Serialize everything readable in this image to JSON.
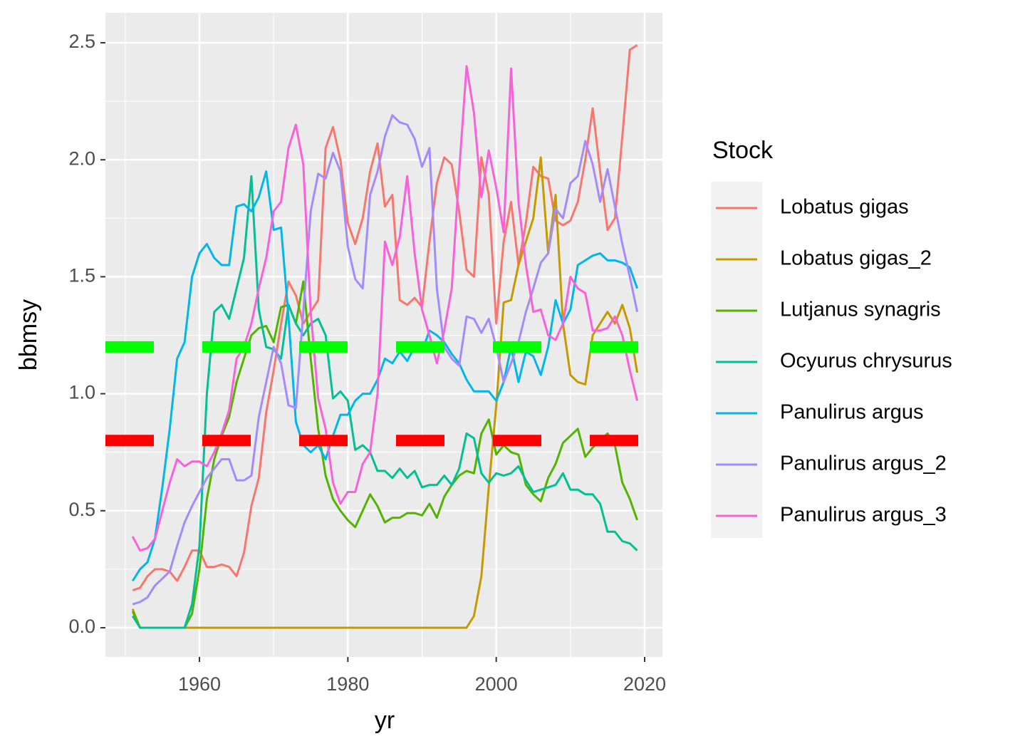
{
  "chart_data": {
    "type": "line",
    "x_label": "yr",
    "y_label": "bbmsy",
    "legend_title": "Stock",
    "legend_position": "right",
    "grid": true,
    "xlim": [
      1947.33,
      2022.4
    ],
    "xticks": [
      1960,
      1980,
      2000,
      2020
    ],
    "ylim": [
      -0.125,
      2.628
    ],
    "yticks": [
      {
        "value": 0,
        "label": "0.0"
      },
      0.5,
      {
        "value": 1,
        "label": "1.0"
      },
      1.5,
      {
        "value": 2,
        "label": "2.0"
      },
      2.5
    ],
    "reference_lines": [
      {
        "value": 1.2,
        "color": "#00ff00"
      },
      {
        "value": 0.8,
        "color": "#ff0000"
      }
    ],
    "x": [
      1951,
      1952,
      1953,
      1954,
      1955,
      1956,
      1957,
      1958,
      1959,
      1960,
      1961,
      1962,
      1963,
      1964,
      1965,
      1966,
      1967,
      1968,
      1969,
      1970,
      1971,
      1972,
      1973,
      1974,
      1975,
      1976,
      1977,
      1978,
      1979,
      1980,
      1981,
      1982,
      1983,
      1984,
      1985,
      1986,
      1987,
      1988,
      1989,
      1990,
      1991,
      1992,
      1993,
      1994,
      1995,
      1996,
      1997,
      1998,
      1999,
      2000,
      2001,
      2002,
      2003,
      2004,
      2005,
      2006,
      2007,
      2008,
      2009,
      2010,
      2011,
      2012,
      2013,
      2014,
      2015,
      2016,
      2017,
      2018,
      2019
    ],
    "series": [
      {
        "name": "Lobatus gigas",
        "color": "#F8766D",
        "values": [
          0.16,
          0.17,
          0.22,
          0.25,
          0.25,
          0.24,
          0.2,
          0.26,
          0.33,
          0.33,
          0.26,
          0.26,
          0.27,
          0.26,
          0.22,
          0.32,
          0.52,
          0.64,
          0.92,
          1.1,
          1.3,
          1.48,
          1.42,
          1.3,
          1.35,
          1.4,
          2.05,
          2.14,
          2.0,
          1.73,
          1.64,
          1.75,
          1.95,
          2.07,
          1.8,
          1.85,
          1.4,
          1.38,
          1.41,
          1.37,
          1.65,
          1.9,
          2.01,
          1.98,
          1.78,
          1.53,
          1.5,
          2.01,
          1.85,
          1.3,
          1.65,
          1.82,
          1.55,
          1.73,
          1.97,
          1.93,
          1.92,
          1.74,
          1.72,
          1.74,
          1.82,
          2.0,
          2.22,
          1.95,
          1.7,
          1.75,
          2.1,
          2.47,
          2.49
        ]
      },
      {
        "name": "Lobatus gigas_2",
        "color": "#C49A00",
        "values": [
          0.08,
          0,
          0,
          0,
          0,
          0,
          0,
          0,
          0,
          0,
          0,
          0,
          0,
          0,
          0,
          0,
          0,
          0,
          0,
          0,
          0,
          0,
          0,
          0,
          0,
          0,
          0,
          0,
          0,
          0,
          0,
          0,
          0,
          0,
          0,
          0,
          0,
          0,
          0,
          0,
          0,
          0,
          0,
          0,
          0,
          0,
          0.05,
          0.22,
          0.6,
          0.95,
          1.39,
          1.4,
          1.55,
          1.65,
          1.75,
          2.01,
          1.6,
          1.85,
          1.3,
          1.08,
          1.05,
          1.04,
          1.25,
          1.3,
          1.35,
          1.3,
          1.38,
          1.28,
          1.09
        ]
      },
      {
        "name": "Lutjanus synagris",
        "color": "#53B400",
        "values": [
          0.07,
          0,
          0,
          0,
          0,
          0,
          0,
          0,
          0.06,
          0.25,
          0.55,
          0.72,
          0.82,
          0.9,
          1.05,
          1.15,
          1.25,
          1.28,
          1.29,
          1.22,
          1.37,
          1.38,
          1.3,
          1.48,
          1.15,
          0.85,
          0.65,
          0.55,
          0.5,
          0.46,
          0.43,
          0.5,
          0.57,
          0.52,
          0.45,
          0.47,
          0.47,
          0.49,
          0.49,
          0.48,
          0.53,
          0.47,
          0.56,
          0.61,
          0.65,
          0.67,
          0.66,
          0.83,
          0.89,
          0.74,
          0.78,
          0.75,
          0.74,
          0.61,
          0.57,
          0.54,
          0.64,
          0.7,
          0.79,
          0.82,
          0.85,
          0.73,
          0.77,
          0.8,
          0.83,
          0.78,
          0.62,
          0.55,
          0.46
        ]
      },
      {
        "name": "Ocyurus chrysurus",
        "color": "#00C094",
        "values": [
          0.05,
          0,
          0,
          0,
          0,
          0,
          0,
          0,
          0.1,
          0.35,
          1.0,
          1.35,
          1.38,
          1.32,
          1.45,
          1.58,
          1.93,
          1.36,
          1.2,
          1.19,
          1.15,
          1.38,
          1.3,
          1.25,
          1.3,
          1.32,
          1.25,
          0.98,
          1.01,
          0.97,
          0.76,
          0.78,
          0.75,
          0.67,
          0.67,
          0.64,
          0.68,
          0.64,
          0.67,
          0.6,
          0.61,
          0.61,
          0.65,
          0.61,
          0.68,
          0.83,
          0.81,
          0.66,
          0.62,
          0.66,
          0.65,
          0.66,
          0.69,
          0.63,
          0.58,
          0.59,
          0.6,
          0.61,
          0.66,
          0.59,
          0.59,
          0.57,
          0.57,
          0.53,
          0.41,
          0.41,
          0.37,
          0.36,
          0.33
        ]
      },
      {
        "name": "Panulirus argus",
        "color": "#00B6EB",
        "values": [
          0.2,
          0.25,
          0.28,
          0.38,
          0.6,
          0.85,
          1.15,
          1.22,
          1.5,
          1.6,
          1.64,
          1.58,
          1.55,
          1.55,
          1.8,
          1.81,
          1.78,
          1.84,
          1.95,
          1.7,
          1.71,
          1.33,
          0.88,
          0.78,
          0.75,
          0.78,
          0.72,
          0.82,
          0.91,
          0.91,
          0.97,
          1.0,
          1.0,
          1.06,
          1.15,
          1.13,
          1.18,
          1.14,
          1.2,
          1.18,
          1.27,
          1.25,
          1.22,
          1.17,
          1.13,
          1.06,
          1.01,
          1.01,
          1.01,
          0.97,
          1.05,
          1.2,
          1.05,
          1.18,
          1.16,
          1.08,
          1.2,
          1.4,
          1.3,
          1.36,
          1.55,
          1.57,
          1.59,
          1.6,
          1.57,
          1.57,
          1.56,
          1.54,
          1.45
        ]
      },
      {
        "name": "Panulirus argus_2",
        "color": "#A58AFF",
        "values": [
          0.1,
          0.11,
          0.13,
          0.18,
          0.21,
          0.24,
          0.35,
          0.45,
          0.52,
          0.58,
          0.64,
          0.68,
          0.72,
          0.72,
          0.63,
          0.63,
          0.65,
          0.9,
          1.05,
          1.2,
          1.13,
          0.95,
          0.94,
          1.35,
          1.78,
          1.94,
          1.92,
          2.03,
          1.95,
          1.63,
          1.49,
          1.45,
          1.85,
          1.95,
          2.1,
          2.19,
          2.16,
          2.15,
          2.09,
          1.97,
          2.05,
          1.45,
          1.2,
          1.15,
          1.12,
          1.33,
          1.32,
          1.26,
          1.32,
          1.2,
          1.05,
          1.13,
          1.22,
          1.35,
          1.45,
          1.56,
          1.6,
          1.79,
          1.75,
          1.9,
          1.93,
          2.08,
          1.98,
          1.82,
          1.96,
          1.8,
          1.64,
          1.5,
          1.35
        ]
      },
      {
        "name": "Panulirus argus_3",
        "color": "#FB61D7",
        "values": [
          0.39,
          0.33,
          0.34,
          0.38,
          0.5,
          0.62,
          0.72,
          0.69,
          0.71,
          0.71,
          0.69,
          0.75,
          0.83,
          0.93,
          1.15,
          1.2,
          1.3,
          1.45,
          1.58,
          1.78,
          1.82,
          2.05,
          2.15,
          1.98,
          1.35,
          0.98,
          0.85,
          0.62,
          0.53,
          0.58,
          0.58,
          0.7,
          0.75,
          1.0,
          1.65,
          1.55,
          1.67,
          1.93,
          1.6,
          1.36,
          1.25,
          1.13,
          1.27,
          1.45,
          1.95,
          2.4,
          2.2,
          1.84,
          2.04,
          1.88,
          1.69,
          2.39,
          1.82,
          1.55,
          1.35,
          1.36,
          1.25,
          1.23,
          1.3,
          1.5,
          1.45,
          1.43,
          1.27,
          1.27,
          1.28,
          1.33,
          1.25,
          1.1,
          0.97
        ]
      }
    ]
  }
}
